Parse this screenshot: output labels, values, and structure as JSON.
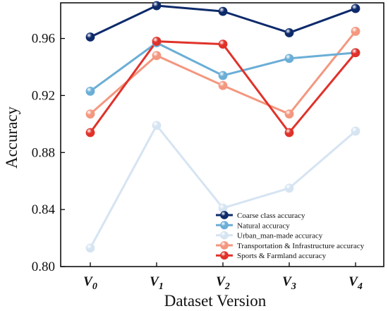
{
  "chart_data": {
    "type": "line",
    "xlabel": "Dataset Version",
    "ylabel": "Accuracy",
    "categories": [
      {
        "main": "V",
        "sub": "0"
      },
      {
        "main": "V",
        "sub": "1"
      },
      {
        "main": "V",
        "sub": "2"
      },
      {
        "main": "V",
        "sub": "3"
      },
      {
        "main": "V",
        "sub": "4"
      }
    ],
    "ylim": [
      0.8,
      0.985
    ],
    "yticks": [
      "0.80",
      "0.84",
      "0.88",
      "0.92",
      "0.96"
    ],
    "grid": false,
    "legend_position": "bottom-right",
    "series": [
      {
        "name": "Coarse class accuracy",
        "color": "#0d2a6b",
        "values": [
          0.961,
          0.983,
          0.979,
          0.964,
          0.981
        ]
      },
      {
        "name": "Natural accuracy",
        "color": "#6baed6",
        "values": [
          0.923,
          0.957,
          0.934,
          0.946,
          0.95
        ]
      },
      {
        "name": "Urban_man-made accuracy",
        "color": "#d6e4f2",
        "values": [
          0.813,
          0.899,
          0.841,
          0.855,
          0.895
        ]
      },
      {
        "name": "Transportation & Infrastructure accuracy",
        "color": "#f4977f",
        "values": [
          0.907,
          0.948,
          0.927,
          0.907,
          0.965
        ]
      },
      {
        "name": "Sports & Farmland accuracy",
        "color": "#e0322a",
        "values": [
          0.894,
          0.958,
          0.956,
          0.894,
          0.95
        ]
      }
    ]
  }
}
